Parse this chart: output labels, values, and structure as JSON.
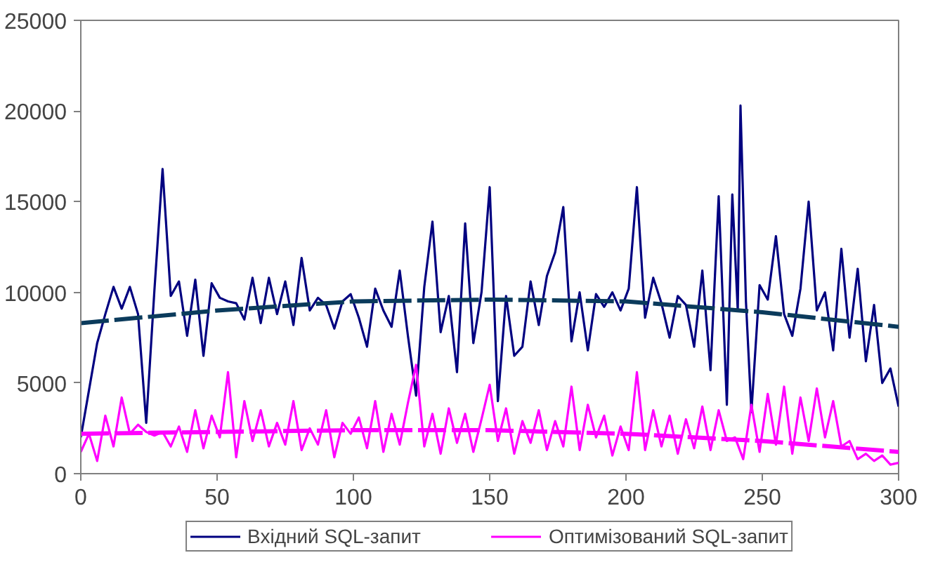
{
  "chart_data": {
    "type": "line",
    "xlim": [
      0,
      300
    ],
    "ylim": [
      0,
      25000
    ],
    "xticks": [
      0,
      50,
      100,
      150,
      200,
      250,
      300
    ],
    "yticks": [
      0,
      5000,
      10000,
      15000,
      20000,
      25000
    ],
    "grid": false,
    "legend": "bottom",
    "marker": "none",
    "series": [
      {
        "name": "Вхідний SQL-запит",
        "color": "#000080",
        "x": [
          0,
          3,
          6,
          9,
          12,
          15,
          18,
          21,
          24,
          27,
          30,
          33,
          36,
          39,
          42,
          45,
          48,
          51,
          54,
          57,
          60,
          63,
          66,
          69,
          72,
          75,
          78,
          81,
          84,
          87,
          90,
          93,
          96,
          99,
          102,
          105,
          108,
          111,
          114,
          117,
          120,
          123,
          126,
          129,
          132,
          135,
          138,
          141,
          144,
          147,
          150,
          153,
          156,
          159,
          162,
          165,
          168,
          171,
          174,
          177,
          180,
          183,
          186,
          189,
          192,
          195,
          198,
          201,
          204,
          207,
          210,
          213,
          216,
          219,
          222,
          225,
          228,
          231,
          234,
          237,
          239,
          241,
          242,
          244,
          246,
          249,
          252,
          255,
          258,
          261,
          264,
          267,
          270,
          273,
          276,
          279,
          282,
          285,
          288,
          291,
          294,
          297,
          300
        ],
        "values": [
          2000,
          4600,
          7200,
          8800,
          10300,
          9100,
          10300,
          8800,
          2800,
          10100,
          16800,
          9800,
          10600,
          7600,
          10700,
          6500,
          10500,
          9700,
          9500,
          9400,
          8500,
          10800,
          8300,
          10800,
          8800,
          10600,
          8200,
          11900,
          9000,
          9700,
          9300,
          8000,
          9500,
          9900,
          8600,
          7000,
          10200,
          9000,
          8100,
          11200,
          7600,
          4300,
          10300,
          13900,
          7800,
          9800,
          5600,
          13800,
          7200,
          10000,
          15800,
          4000,
          9800,
          6500,
          7000,
          10600,
          8200,
          10900,
          12200,
          14700,
          7300,
          10000,
          6800,
          9900,
          9200,
          10000,
          9000,
          10200,
          15800,
          8600,
          10800,
          9400,
          7500,
          9800,
          9300,
          7000,
          11200,
          5700,
          15300,
          3800,
          15400,
          9000,
          20300,
          9500,
          3400,
          10400,
          9600,
          13100,
          8800,
          7600,
          10200,
          15000,
          9000,
          10000,
          6800,
          12400,
          7500,
          11300,
          6200,
          9300,
          5000,
          5800,
          3700
        ]
      },
      {
        "name": "Оптимізований SQL-запит",
        "color": "#ff00ff",
        "x": [
          0,
          3,
          6,
          9,
          12,
          15,
          18,
          21,
          24,
          27,
          30,
          33,
          36,
          39,
          42,
          45,
          48,
          51,
          54,
          57,
          60,
          63,
          66,
          69,
          72,
          75,
          78,
          81,
          84,
          87,
          90,
          93,
          96,
          99,
          102,
          105,
          108,
          111,
          114,
          117,
          120,
          123,
          126,
          129,
          132,
          135,
          138,
          141,
          144,
          147,
          150,
          153,
          156,
          159,
          162,
          165,
          168,
          171,
          174,
          177,
          180,
          183,
          186,
          189,
          192,
          195,
          198,
          201,
          204,
          207,
          210,
          213,
          216,
          219,
          222,
          225,
          228,
          231,
          234,
          237,
          240,
          243,
          246,
          249,
          252,
          255,
          258,
          261,
          264,
          267,
          270,
          273,
          276,
          279,
          282,
          285,
          288,
          291,
          294,
          297,
          300
        ],
        "values": [
          1200,
          2200,
          700,
          3200,
          1500,
          4200,
          2200,
          2700,
          2300,
          2100,
          2300,
          1500,
          2600,
          1200,
          3500,
          1400,
          3200,
          2000,
          5600,
          900,
          4000,
          1800,
          3500,
          1500,
          2800,
          1600,
          4000,
          1300,
          2500,
          1600,
          3500,
          900,
          2800,
          2200,
          3100,
          1400,
          4000,
          1200,
          3300,
          1600,
          3900,
          6000,
          1500,
          3300,
          1100,
          3600,
          1700,
          3300,
          1200,
          3000,
          4900,
          1800,
          3600,
          1100,
          2900,
          1700,
          3500,
          1300,
          2900,
          1500,
          4800,
          1300,
          3800,
          2000,
          3200,
          1000,
          2600,
          1300,
          5600,
          1300,
          3500,
          1500,
          3200,
          1100,
          3000,
          1400,
          3700,
          1300,
          3500,
          1800,
          2000,
          800,
          3800,
          1200,
          4400,
          1600,
          4800,
          1100,
          4200,
          1800,
          4700,
          2000,
          4000,
          1500,
          1800,
          800,
          1100,
          700,
          1000,
          500,
          600
        ]
      },
      {
        "type": "line",
        "color": "#0b3b5c",
        "line_style": "dashed",
        "x": [
          0,
          50,
          100,
          150,
          200,
          250,
          300
        ],
        "values": [
          8300,
          9000,
          9500,
          9600,
          9500,
          8900,
          8100
        ]
      },
      {
        "type": "line",
        "color": "#ff00ff",
        "line_style": "dashed",
        "x": [
          0,
          50,
          100,
          150,
          200,
          250,
          300
        ],
        "values": [
          2200,
          2300,
          2400,
          2400,
          2200,
          1800,
          1200
        ]
      }
    ]
  }
}
